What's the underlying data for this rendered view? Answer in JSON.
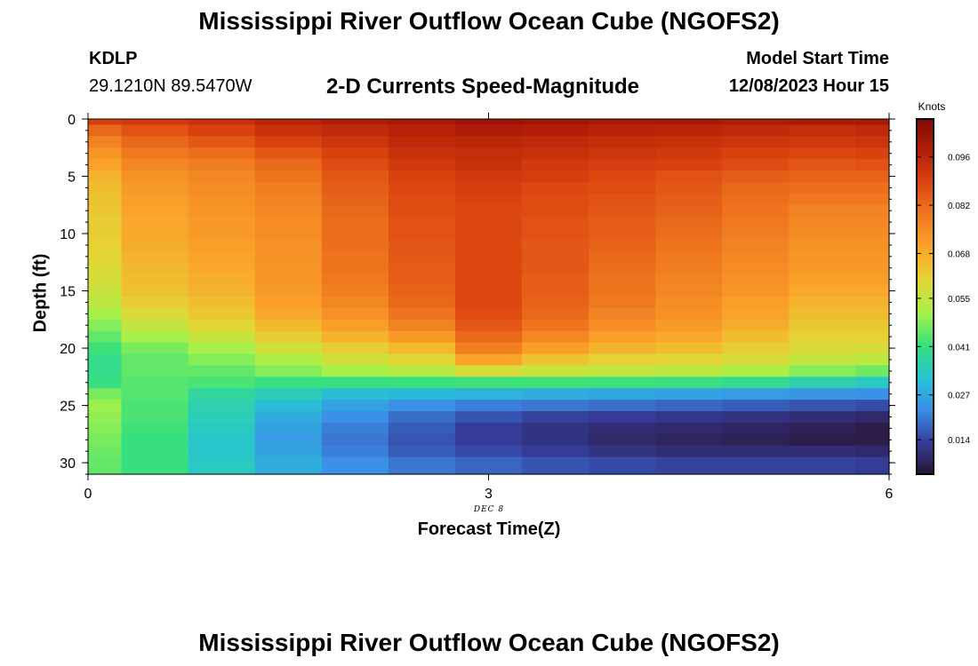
{
  "header": {
    "title": "Mississippi River Outflow Ocean Cube (NGOFS2)",
    "station": "KDLP",
    "coordinates": "29.1210N  89.5470W",
    "subtitle": "2-D Currents Speed-Magnitude",
    "model_start_label": "Model Start Time",
    "model_start_value": "12/08/2023 Hour 15"
  },
  "footer": {
    "title": "Mississippi River Outflow Ocean Cube (NGOFS2)"
  },
  "colors": {
    "axis": "#000000",
    "background": "#ffffff",
    "colormap": [
      "#2a1436",
      "#353d9a",
      "#3b8fe8",
      "#27c4d4",
      "#38e07c",
      "#a6f24a",
      "#e4d635",
      "#fba52a",
      "#f07a20",
      "#dc4510",
      "#b41f07",
      "#7c0a06"
    ]
  },
  "chart_data": {
    "type": "heatmap",
    "title": "2-D Currents Speed-Magnitude",
    "xlabel": "Forecast Time(Z)",
    "ylabel": "Depth (ft)",
    "x_annotation": "DEC 8",
    "colorbar_label": "Knots",
    "xlim": [
      0,
      6
    ],
    "ylim": [
      0,
      31
    ],
    "y_inverted": true,
    "x_ticks": [
      "0",
      "3",
      "6"
    ],
    "y_ticks": [
      "0",
      "5",
      "10",
      "15",
      "20",
      "25",
      "30"
    ],
    "colorbar_ticks": [
      "0.014",
      "0.027",
      "0.041",
      "0.055",
      "0.068",
      "0.082",
      "0.096"
    ],
    "colorbar_range": [
      0.004,
      0.107
    ],
    "x": [
      0,
      0.5,
      1,
      1.5,
      2,
      2.5,
      3,
      3.5,
      4,
      4.5,
      5,
      5.5,
      6
    ],
    "depth": [
      0,
      1,
      2,
      3,
      4,
      5,
      6,
      7,
      8,
      9,
      10,
      11,
      12,
      13,
      14,
      15,
      16,
      17,
      18,
      19,
      20,
      21,
      22,
      23,
      24,
      25,
      26,
      27,
      28,
      29,
      30
    ],
    "values": [
      [
        0.09,
        0.091,
        0.093,
        0.097,
        0.098,
        0.1,
        0.102,
        0.101,
        0.1,
        0.1,
        0.099,
        0.099,
        0.1
      ],
      [
        0.082,
        0.086,
        0.089,
        0.093,
        0.095,
        0.097,
        0.099,
        0.098,
        0.097,
        0.096,
        0.095,
        0.094,
        0.095
      ],
      [
        0.077,
        0.082,
        0.085,
        0.089,
        0.092,
        0.095,
        0.096,
        0.095,
        0.094,
        0.093,
        0.092,
        0.091,
        0.092
      ],
      [
        0.073,
        0.079,
        0.081,
        0.085,
        0.089,
        0.093,
        0.094,
        0.093,
        0.092,
        0.091,
        0.089,
        0.088,
        0.089
      ],
      [
        0.07,
        0.076,
        0.078,
        0.082,
        0.087,
        0.091,
        0.093,
        0.091,
        0.09,
        0.089,
        0.087,
        0.085,
        0.086
      ],
      [
        0.067,
        0.074,
        0.076,
        0.08,
        0.085,
        0.089,
        0.091,
        0.09,
        0.088,
        0.086,
        0.084,
        0.083,
        0.083
      ],
      [
        0.065,
        0.072,
        0.075,
        0.078,
        0.084,
        0.088,
        0.09,
        0.088,
        0.087,
        0.085,
        0.082,
        0.081,
        0.081
      ],
      [
        0.064,
        0.071,
        0.074,
        0.077,
        0.083,
        0.087,
        0.089,
        0.087,
        0.086,
        0.084,
        0.081,
        0.079,
        0.079
      ],
      [
        0.063,
        0.07,
        0.073,
        0.076,
        0.082,
        0.087,
        0.088,
        0.087,
        0.085,
        0.083,
        0.08,
        0.077,
        0.077
      ],
      [
        0.062,
        0.069,
        0.072,
        0.075,
        0.081,
        0.086,
        0.088,
        0.086,
        0.084,
        0.082,
        0.079,
        0.076,
        0.076
      ],
      [
        0.062,
        0.069,
        0.072,
        0.075,
        0.081,
        0.086,
        0.088,
        0.086,
        0.084,
        0.081,
        0.078,
        0.075,
        0.075
      ],
      [
        0.061,
        0.068,
        0.071,
        0.074,
        0.081,
        0.085,
        0.088,
        0.085,
        0.083,
        0.08,
        0.077,
        0.074,
        0.074
      ],
      [
        0.06,
        0.067,
        0.07,
        0.074,
        0.08,
        0.085,
        0.088,
        0.085,
        0.082,
        0.079,
        0.076,
        0.073,
        0.073
      ],
      [
        0.059,
        0.066,
        0.069,
        0.073,
        0.08,
        0.084,
        0.088,
        0.085,
        0.081,
        0.078,
        0.075,
        0.072,
        0.072
      ],
      [
        0.058,
        0.065,
        0.068,
        0.073,
        0.079,
        0.084,
        0.088,
        0.084,
        0.08,
        0.077,
        0.074,
        0.071,
        0.071
      ],
      [
        0.056,
        0.064,
        0.067,
        0.072,
        0.078,
        0.083,
        0.088,
        0.084,
        0.08,
        0.076,
        0.073,
        0.069,
        0.069
      ],
      [
        0.054,
        0.062,
        0.065,
        0.071,
        0.076,
        0.082,
        0.088,
        0.083,
        0.079,
        0.075,
        0.071,
        0.067,
        0.067
      ],
      [
        0.051,
        0.059,
        0.063,
        0.069,
        0.074,
        0.08,
        0.087,
        0.082,
        0.077,
        0.074,
        0.07,
        0.065,
        0.065
      ],
      [
        0.048,
        0.055,
        0.06,
        0.066,
        0.071,
        0.077,
        0.085,
        0.08,
        0.075,
        0.072,
        0.068,
        0.063,
        0.063
      ],
      [
        0.045,
        0.051,
        0.056,
        0.062,
        0.067,
        0.072,
        0.082,
        0.076,
        0.071,
        0.069,
        0.065,
        0.061,
        0.061
      ],
      [
        0.042,
        0.047,
        0.051,
        0.057,
        0.062,
        0.066,
        0.078,
        0.071,
        0.067,
        0.065,
        0.062,
        0.059,
        0.058
      ],
      [
        0.04,
        0.045,
        0.048,
        0.052,
        0.057,
        0.06,
        0.07,
        0.064,
        0.061,
        0.06,
        0.058,
        0.055,
        0.054
      ],
      [
        0.04,
        0.045,
        0.045,
        0.048,
        0.051,
        0.053,
        0.058,
        0.056,
        0.055,
        0.054,
        0.052,
        0.048,
        0.046
      ],
      [
        0.041,
        0.044,
        0.043,
        0.041,
        0.041,
        0.041,
        0.042,
        0.042,
        0.042,
        0.041,
        0.039,
        0.036,
        0.034
      ],
      [
        0.047,
        0.044,
        0.038,
        0.035,
        0.031,
        0.03,
        0.029,
        0.028,
        0.027,
        0.026,
        0.025,
        0.024,
        0.023
      ],
      [
        0.05,
        0.043,
        0.036,
        0.031,
        0.026,
        0.023,
        0.021,
        0.02,
        0.019,
        0.018,
        0.017,
        0.016,
        0.015
      ],
      [
        0.049,
        0.043,
        0.035,
        0.028,
        0.023,
        0.019,
        0.016,
        0.014,
        0.013,
        0.012,
        0.011,
        0.01,
        0.009
      ],
      [
        0.048,
        0.042,
        0.034,
        0.026,
        0.021,
        0.017,
        0.013,
        0.011,
        0.01,
        0.009,
        0.008,
        0.007,
        0.006
      ],
      [
        0.047,
        0.041,
        0.033,
        0.025,
        0.02,
        0.016,
        0.013,
        0.011,
        0.009,
        0.008,
        0.007,
        0.006,
        0.006
      ],
      [
        0.046,
        0.041,
        0.033,
        0.026,
        0.021,
        0.017,
        0.015,
        0.013,
        0.011,
        0.01,
        0.01,
        0.01,
        0.009
      ],
      [
        0.045,
        0.041,
        0.034,
        0.028,
        0.023,
        0.02,
        0.018,
        0.016,
        0.015,
        0.014,
        0.014,
        0.014,
        0.013
      ]
    ]
  }
}
